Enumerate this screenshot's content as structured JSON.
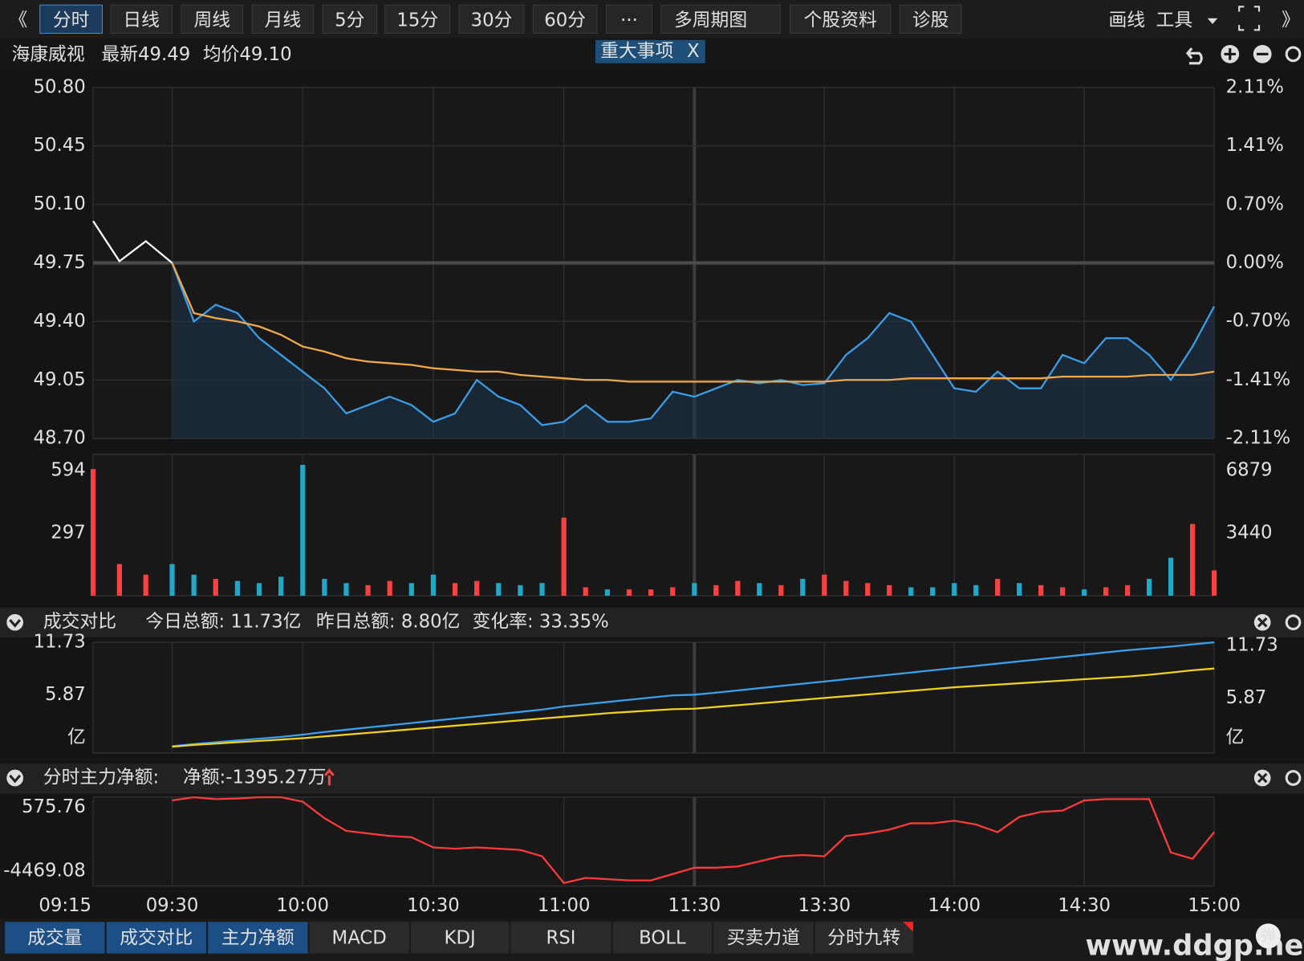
{
  "toolbar": {
    "left": [
      "《",
      "分时",
      "日线",
      "周线",
      "月线",
      "5分",
      "15分",
      "30分",
      "60分",
      "···",
      "多周期图",
      "个股资料",
      "诊股"
    ],
    "right": [
      "画线",
      "工具",
      "》"
    ]
  },
  "header": {
    "name": "海康威视",
    "latest": "最新49.49",
    "average": "均价49.10",
    "event": "重大事项",
    "event_close": "X"
  },
  "chart_data": [
    {
      "type": "line",
      "x": [
        "09:15",
        "09:20",
        "09:25",
        "09:30",
        "09:35",
        "09:40",
        "09:45",
        "09:50",
        "09:55",
        "10:00",
        "10:05",
        "10:10",
        "10:15",
        "10:20",
        "10:25",
        "10:30",
        "10:35",
        "10:40",
        "10:45",
        "10:50",
        "10:55",
        "11:00",
        "11:05",
        "11:10",
        "11:15",
        "11:20",
        "11:25",
        "13:00",
        "13:05",
        "13:10",
        "13:15",
        "13:20",
        "13:25",
        "13:30",
        "13:35",
        "13:40",
        "13:45",
        "13:50",
        "13:55",
        "14:00",
        "14:05",
        "14:10",
        "14:15",
        "14:20",
        "14:25",
        "14:30",
        "14:35",
        "14:40",
        "14:45",
        "14:50",
        "14:55",
        "15:00"
      ],
      "xticks": [
        "09:15",
        "09:30",
        "10:00",
        "10:30",
        "11:00",
        "11:30",
        "13:30",
        "14:00",
        "14:30",
        "15:00"
      ],
      "ylim": [
        48.7,
        50.8
      ],
      "yticks": [
        {
          "value": 48.7,
          "label": "48.70"
        },
        49.05,
        {
          "value": 49.4,
          "label": "49.40"
        },
        49.75,
        {
          "value": 50.1,
          "label": "50.10"
        },
        50.45,
        {
          "value": 50.8,
          "label": "50.80"
        }
      ],
      "y2lim": [
        -2.11,
        2.11
      ],
      "y2ticks": [
        {
          "value": -2.11,
          "label": "-2.11%"
        },
        {
          "value": -1.41,
          "label": "-1.41%"
        },
        {
          "value": -0.7,
          "label": "-0.70%"
        },
        {
          "value": 0,
          "label": "0.00%"
        },
        {
          "value": 0.7,
          "label": "0.70%"
        },
        {
          "value": 1.41,
          "label": "1.41%"
        },
        {
          "value": 2.11,
          "label": "2.11%"
        }
      ],
      "up_color": "#ff3b3b",
      "down_color": "#2ec24a",
      "series": [
        {
          "color": "#ffffff",
          "values": [
            50.0,
            49.76,
            49.88,
            49.75,
            null,
            null,
            null,
            null,
            null,
            null,
            null,
            null,
            null,
            null,
            null,
            null,
            null,
            null,
            null,
            null,
            null,
            null,
            null,
            null,
            null,
            null,
            null,
            null,
            null,
            null,
            null,
            null,
            null,
            null,
            null,
            null,
            null,
            null,
            null,
            null,
            null,
            null,
            null,
            null,
            null,
            null,
            null,
            null,
            null,
            null,
            null,
            null
          ]
        },
        {
          "color": "#3a9ee8",
          "values": [
            null,
            null,
            null,
            49.75,
            49.4,
            49.5,
            49.45,
            49.3,
            49.2,
            49.1,
            49.0,
            48.85,
            48.9,
            48.95,
            48.9,
            48.8,
            48.85,
            49.05,
            48.95,
            48.9,
            48.78,
            48.8,
            48.9,
            48.8,
            48.8,
            48.82,
            48.98,
            48.95,
            49.0,
            49.05,
            49.03,
            49.05,
            49.02,
            49.03,
            49.2,
            49.3,
            49.45,
            49.4,
            49.2,
            49.0,
            48.98,
            49.1,
            49.0,
            49.0,
            49.2,
            49.15,
            49.3,
            49.3,
            49.2,
            49.05,
            49.25,
            49.49
          ]
        },
        {
          "color": "#f0a94a",
          "values": [
            null,
            null,
            null,
            49.75,
            49.45,
            49.42,
            49.4,
            49.37,
            49.32,
            49.25,
            49.22,
            49.18,
            49.16,
            49.15,
            49.14,
            49.12,
            49.11,
            49.1,
            49.1,
            49.08,
            49.07,
            49.06,
            49.05,
            49.05,
            49.04,
            49.04,
            49.04,
            49.04,
            49.04,
            49.04,
            49.04,
            49.04,
            49.04,
            49.04,
            49.05,
            49.05,
            49.05,
            49.06,
            49.06,
            49.06,
            49.06,
            49.06,
            49.06,
            49.06,
            49.07,
            49.07,
            49.07,
            49.07,
            49.08,
            49.08,
            49.08,
            49.1
          ]
        }
      ]
    },
    {
      "type": "bar",
      "x": [
        "09:15",
        "09:20",
        "09:25",
        "09:30",
        "09:35",
        "09:40",
        "09:45",
        "09:50",
        "09:55",
        "10:00",
        "10:05",
        "10:10",
        "10:15",
        "10:20",
        "10:25",
        "10:30",
        "10:35",
        "10:40",
        "10:45",
        "10:50",
        "10:55",
        "11:00",
        "11:05",
        "11:10",
        "11:15",
        "11:20",
        "11:25",
        "13:00",
        "13:05",
        "13:10",
        "13:15",
        "13:20",
        "13:25",
        "13:30",
        "13:35",
        "13:40",
        "13:45",
        "13:50",
        "13:55",
        "14:00",
        "14:05",
        "14:10",
        "14:15",
        "14:20",
        "14:25",
        "14:30",
        "14:35",
        "14:40",
        "14:45",
        "14:50",
        "14:55",
        "15:00"
      ],
      "values": [
        600,
        150,
        100,
        150,
        100,
        80,
        70,
        60,
        90,
        620,
        80,
        60,
        50,
        70,
        60,
        100,
        60,
        70,
        60,
        50,
        60,
        370,
        40,
        30,
        30,
        30,
        40,
        60,
        50,
        70,
        60,
        50,
        80,
        100,
        70,
        60,
        50,
        40,
        40,
        60,
        50,
        80,
        60,
        50,
        40,
        30,
        40,
        50,
        80,
        180,
        340,
        120
      ],
      "ylim": [
        0,
        670
      ],
      "yticks": [
        297,
        594
      ],
      "y2lim": [
        0,
        7760
      ],
      "y2ticks": [
        3440,
        6879
      ],
      "up_color": "#ff4040",
      "down_color": "#1fa8c8"
    },
    {
      "type": "line",
      "title": "成交对比",
      "annotation": "变化率: 33.35%",
      "unit_label": "亿",
      "x": [
        "09:15",
        "09:20",
        "09:25",
        "09:30",
        "09:35",
        "09:40",
        "09:45",
        "09:50",
        "09:55",
        "10:00",
        "10:05",
        "10:10",
        "10:15",
        "10:20",
        "10:25",
        "10:30",
        "10:35",
        "10:40",
        "10:45",
        "10:50",
        "10:55",
        "11:00",
        "11:05",
        "11:10",
        "11:15",
        "11:20",
        "11:25",
        "13:00",
        "13:05",
        "13:10",
        "13:15",
        "13:20",
        "13:25",
        "13:30",
        "13:35",
        "13:40",
        "13:45",
        "13:50",
        "13:55",
        "14:00",
        "14:05",
        "14:10",
        "14:15",
        "14:20",
        "14:25",
        "14:30",
        "14:35",
        "14:40",
        "14:45",
        "14:50",
        "14:55",
        "15:00"
      ],
      "ylim": [
        0,
        11.73
      ],
      "yticks": [
        5.87,
        11.73
      ],
      "series": [
        {
          "name": "今日总额: 11.73亿",
          "color": "#3aa0f0",
          "values": [
            null,
            null,
            null,
            0.1,
            0.35,
            0.55,
            0.75,
            0.95,
            1.15,
            1.4,
            1.7,
            1.95,
            2.2,
            2.45,
            2.7,
            2.95,
            3.2,
            3.45,
            3.7,
            3.95,
            4.2,
            4.55,
            4.8,
            5.05,
            5.3,
            5.55,
            5.8,
            5.87,
            6.1,
            6.35,
            6.6,
            6.85,
            7.1,
            7.35,
            7.6,
            7.85,
            8.1,
            8.35,
            8.6,
            8.85,
            9.1,
            9.35,
            9.6,
            9.85,
            10.1,
            10.35,
            10.6,
            10.85,
            11.05,
            11.25,
            11.5,
            11.73
          ]
        },
        {
          "name": "昨日总额: 8.80亿",
          "color": "#f0d020",
          "values": [
            null,
            null,
            null,
            0.05,
            0.25,
            0.4,
            0.55,
            0.7,
            0.85,
            1.0,
            1.2,
            1.4,
            1.6,
            1.8,
            2.0,
            2.2,
            2.4,
            2.6,
            2.8,
            3.0,
            3.2,
            3.4,
            3.6,
            3.8,
            3.95,
            4.1,
            4.25,
            4.3,
            4.5,
            4.7,
            4.9,
            5.1,
            5.3,
            5.5,
            5.7,
            5.9,
            6.1,
            6.3,
            6.5,
            6.7,
            6.85,
            7.0,
            7.15,
            7.3,
            7.45,
            7.6,
            7.75,
            7.9,
            8.1,
            8.35,
            8.6,
            8.8
          ]
        }
      ]
    },
    {
      "type": "line",
      "title": "分时主力净额:",
      "annotation": "净额:-1395.27万",
      "x": [
        "09:15",
        "09:20",
        "09:25",
        "09:30",
        "09:35",
        "09:40",
        "09:45",
        "09:50",
        "09:55",
        "10:00",
        "10:05",
        "10:10",
        "10:15",
        "10:20",
        "10:25",
        "10:30",
        "10:35",
        "10:40",
        "10:45",
        "10:50",
        "10:55",
        "11:00",
        "11:05",
        "11:10",
        "11:15",
        "11:20",
        "11:25",
        "13:00",
        "13:05",
        "13:10",
        "13:15",
        "13:20",
        "13:25",
        "13:30",
        "13:35",
        "13:40",
        "13:45",
        "13:50",
        "13:55",
        "14:00",
        "14:05",
        "14:10",
        "14:15",
        "14:20",
        "14:25",
        "14:30",
        "14:35",
        "14:40",
        "14:45",
        "14:50",
        "14:55",
        "15:00"
      ],
      "ylim": [
        -5648,
        1362
      ],
      "yticks": [
        -4469.08,
        575.76
      ],
      "series": [
        {
          "color": "#ff3b3b",
          "values": [
            null,
            null,
            null,
            1100,
            1350,
            1200,
            1250,
            1350,
            1350,
            1000,
            -300,
            -1300,
            -1500,
            -1700,
            -1800,
            -2600,
            -2700,
            -2600,
            -2700,
            -2800,
            -3300,
            -5400,
            -5000,
            -5100,
            -5200,
            -5200,
            -4700,
            -4200,
            -4200,
            -4100,
            -3700,
            -3300,
            -3200,
            -3300,
            -1700,
            -1500,
            -1200,
            -700,
            -700,
            -500,
            -800,
            -1400,
            -200,
            200,
            300,
            1100,
            1200,
            1200,
            1200,
            -3000,
            -3500,
            -1395.27
          ]
        }
      ]
    }
  ],
  "tabs": [
    "成交量",
    "成交对比",
    "主力净额",
    "MACD",
    "KDJ",
    "RSI",
    "BOLL",
    "买卖力道",
    "分时九转"
  ],
  "active_tabs": [
    0,
    1,
    2
  ],
  "watermark": "www.ddgp.net",
  "badge": "弹"
}
